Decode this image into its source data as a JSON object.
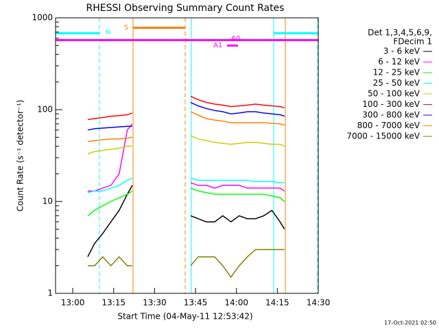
{
  "chart_data": {
    "type": "line",
    "title": "RHESSI Observing Summary Count Rates",
    "xlabel": "Start Time (04-May-11 12:53:42)",
    "ylabel": "Count Rate (s⁻¹ detector⁻¹)",
    "footer": "17-Oct-2021 02:50",
    "legend_title": [
      "Det 1,3,4,5,6,9,",
      "FDecim 1"
    ],
    "annotations": [
      "N",
      "S",
      "A1",
      "A0"
    ],
    "log_scale": true,
    "xlim": [
      773.7,
      870
    ],
    "xticks": [
      {
        "value": 780,
        "label": "13:00"
      },
      {
        "value": 795,
        "label": "13:15"
      },
      {
        "value": 810,
        "label": "13:30"
      },
      {
        "value": 825,
        "label": "13:45"
      },
      {
        "value": 840,
        "label": "14:00"
      },
      {
        "value": 855,
        "label": "14:15"
      },
      {
        "value": 870,
        "label": "14:30"
      }
    ],
    "ylim": [
      1,
      1000
    ],
    "yticks": [
      1,
      10,
      100,
      1000
    ],
    "x": [
      785.5,
      788,
      791,
      794,
      797,
      800,
      801.8,
      null,
      823.2,
      826,
      829,
      832,
      835,
      838,
      841,
      844,
      847,
      850,
      853,
      856,
      857.6
    ],
    "series": [
      {
        "name": "3 - 6 keV",
        "color": "#000000",
        "values": [
          2.5,
          3.5,
          4.5,
          6,
          8,
          12,
          15,
          null,
          7,
          6.5,
          6,
          6,
          7,
          6,
          7,
          6.5,
          6.5,
          7,
          8,
          6,
          5
        ]
      },
      {
        "name": "6 - 12 keV",
        "color": "#ff00ff",
        "values": [
          13,
          13,
          14,
          15,
          20,
          60,
          70,
          null,
          16,
          15,
          15,
          14,
          15,
          15,
          15,
          14,
          14,
          14,
          14,
          14,
          13
        ]
      },
      {
        "name": "12 - 25 keV",
        "color": "#00ff00",
        "values": [
          7,
          8,
          9,
          10,
          11,
          12,
          13,
          null,
          14,
          13,
          12.5,
          12,
          12,
          12,
          12,
          12,
          12,
          12,
          11.5,
          11,
          10
        ]
      },
      {
        "name": "25 - 50 keV",
        "color": "#00ffff",
        "values": [
          12.5,
          13,
          13,
          14,
          15,
          17,
          18,
          null,
          18,
          17,
          17,
          17,
          17,
          17,
          17,
          17,
          16.5,
          16.5,
          16.5,
          16,
          16
        ]
      },
      {
        "name": "50 - 100 keV",
        "color": "#cccc00",
        "values": [
          33,
          35,
          36,
          37,
          38,
          40,
          40,
          null,
          52,
          48,
          46,
          44,
          43,
          42,
          43,
          44,
          44,
          43,
          42,
          42,
          40
        ]
      },
      {
        "name": "100 - 300 keV",
        "color": "#ff0000",
        "values": [
          78,
          80,
          82,
          85,
          86,
          88,
          92,
          null,
          140,
          128,
          120,
          115,
          112,
          108,
          110,
          112,
          115,
          112,
          110,
          108,
          105
        ]
      },
      {
        "name": "300 - 800 keV",
        "color": "#0000ff",
        "values": [
          60,
          62,
          63,
          64,
          65,
          66,
          66,
          null,
          120,
          110,
          103,
          98,
          95,
          90,
          92,
          95,
          95,
          92,
          90,
          88,
          85
        ]
      },
      {
        "name": "800 - 7000 keV",
        "color": "#ff7f00",
        "values": [
          45,
          46,
          47,
          48,
          48,
          49,
          50,
          null,
          95,
          87,
          80,
          77,
          75,
          72,
          72,
          72,
          72,
          72,
          71,
          70,
          68
        ]
      },
      {
        "name": "7000 - 15000 keV",
        "color": "#7f7f00",
        "values": [
          2,
          2,
          2.5,
          2,
          2.5,
          2,
          2,
          null,
          2,
          2.5,
          2.5,
          2.5,
          2,
          1.5,
          2,
          2.5,
          3,
          3,
          3,
          3,
          3
        ]
      }
    ]
  }
}
